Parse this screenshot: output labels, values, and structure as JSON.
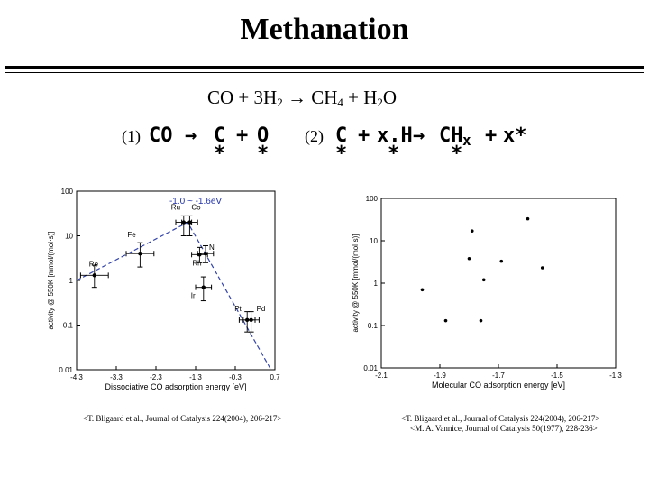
{
  "title": "Methanation",
  "equation": {
    "parts": [
      "CO + 3H",
      "2",
      " → CH",
      "4",
      " + H",
      "2",
      "O"
    ]
  },
  "reaction1": {
    "label": "(1)",
    "tokens": [
      "CO",
      "→",
      "C",
      "+",
      "O"
    ],
    "stars": [
      "*",
      "*"
    ]
  },
  "reaction2": {
    "label": "(2)",
    "tokens": [
      "C",
      "+",
      "x.H",
      "→",
      "CH",
      "x",
      "+",
      "x*"
    ],
    "stars": [
      "*",
      "*",
      "*"
    ]
  },
  "chart_data": [
    {
      "type": "scatter",
      "xlabel": "Dissociative CO adsorption energy [eV]",
      "ylabel": "activity @ 550K [mmol/(mol·s)]",
      "xlim": [
        -4.3,
        0.7
      ],
      "ylim": [
        0.01,
        100
      ],
      "yscale": "log",
      "xticks": [
        "-4.3",
        "-3.3",
        "-2.3",
        "-1.3",
        "-0.3",
        "0.7"
      ],
      "yticks": [
        "100",
        "10",
        "1",
        "0.1",
        "0.01"
      ],
      "annotation": "-1.0 ~ -1.6eV",
      "points": [
        {
          "label": "Re",
          "x": -3.85,
          "y": 1.3,
          "xerr": 0.35,
          "yerr": [
            0.7,
            2.2
          ]
        },
        {
          "label": "Fe",
          "x": -2.7,
          "y": 4.0,
          "xerr": 0.35,
          "yerr": [
            2.0,
            7.0
          ]
        },
        {
          "label": "Ru",
          "x": -1.6,
          "y": 20,
          "xerr": 0.2,
          "yerr": [
            10,
            28
          ]
        },
        {
          "label": "Co",
          "x": -1.45,
          "y": 20,
          "xerr": 0.2,
          "yerr": [
            10,
            28
          ]
        },
        {
          "label": "Ni",
          "x": -1.05,
          "y": 4.0,
          "xerr": 0.2,
          "yerr": [
            2.5,
            6.0
          ]
        },
        {
          "label": "Rh",
          "x": -1.2,
          "y": 3.8,
          "xerr": 0.2,
          "yerr": [
            2.5,
            5.5
          ]
        },
        {
          "label": "Ir",
          "x": -1.1,
          "y": 0.7,
          "xerr": 0.2,
          "yerr": [
            0.35,
            1.2
          ]
        },
        {
          "label": "Pt",
          "x": 0.0,
          "y": 0.13,
          "xerr": 0.2,
          "yerr": [
            0.07,
            0.2
          ]
        },
        {
          "label": "Pd",
          "x": 0.1,
          "y": 0.13,
          "xerr": 0.2,
          "yerr": [
            0.07,
            0.2
          ]
        }
      ],
      "trend": [
        [
          -4.3,
          1.0
        ],
        [
          -1.5,
          20
        ],
        [
          0.6,
          0.01
        ]
      ],
      "citation": "<T. Bligaard et al., Journal of Catalysis 224(2004), 206-217>"
    },
    {
      "type": "scatter",
      "xlabel": "Molecular CO adsorption energy [eV]",
      "ylabel": "activity @ 550K [mmol/(mol·s)]",
      "xlim": [
        -2.1,
        -1.3
      ],
      "ylim": [
        0.01,
        100
      ],
      "yscale": "log",
      "xticks": [
        "-2.1",
        "-1.9",
        "-1.7",
        "-1.5",
        "-1.3"
      ],
      "yticks": [
        "100",
        "10",
        "1",
        "0.1",
        "0.01"
      ],
      "points": [
        {
          "x": -1.96,
          "y": 0.7
        },
        {
          "x": -1.88,
          "y": 0.13
        },
        {
          "x": -1.8,
          "y": 3.8
        },
        {
          "x": -1.79,
          "y": 17
        },
        {
          "x": -1.75,
          "y": 1.2
        },
        {
          "x": -1.76,
          "y": 0.13
        },
        {
          "x": -1.69,
          "y": 3.3
        },
        {
          "x": -1.6,
          "y": 33
        },
        {
          "x": -1.55,
          "y": 2.3
        }
      ],
      "citations": [
        "<T. Bligaard et al., Journal of Catalysis 224(2004), 206-217>",
        "<M. A. Vannice, Journal of Catalysis 50(1977), 228-236>"
      ]
    }
  ]
}
